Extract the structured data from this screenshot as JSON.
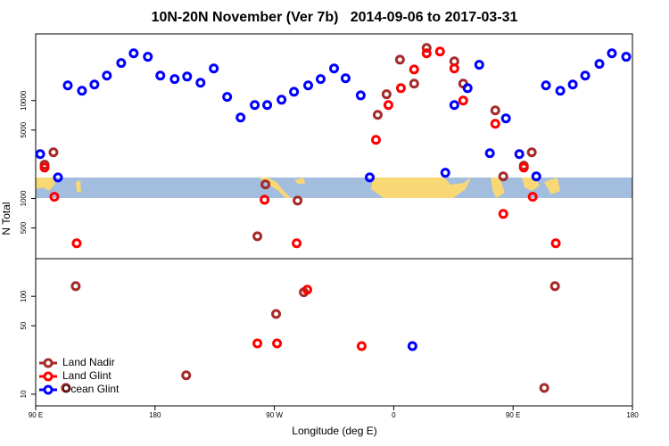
{
  "chart_data": {
    "type": "scatter",
    "title": "10N-20N November (Ver 7b)   2014-09-06 to 2017-03-31",
    "xlabel": "Longitude (deg E)",
    "ylabel": "N Total",
    "xlim": [
      90,
      540
    ],
    "xticks": [
      {
        "value": 90,
        "label": "90 E"
      },
      180,
      {
        "value": 270,
        "label": "90 W"
      },
      {
        "value": 360,
        "label": "0"
      },
      {
        "value": 450,
        "label": "90 E"
      },
      {
        "value": 540,
        "label": "180"
      }
    ],
    "ylim": [
      7.6,
      48000
    ],
    "ylog": true,
    "yticks": [
      10,
      50,
      100,
      500,
      1000,
      5000,
      10000
    ],
    "legend": "bottom-left",
    "series": [
      {
        "name": "Land Nadir",
        "color": "#a52a2a",
        "x": [
          96.7,
          103.4,
          112.8,
          120.2,
          203.5,
          257.2,
          263.3,
          271.3,
          287.5,
          292.2,
          347.9,
          354.6,
          364.7,
          375.4,
          384.8,
          405.7,
          412.4,
          436.6,
          442.6,
          458.1,
          464.1,
          473.5,
          481.6
        ],
        "values": [
          2210,
          2960,
          11.6,
          127,
          15.6,
          411,
          1390,
          66,
          950,
          110,
          7150,
          11600,
          26200,
          14900,
          34500,
          25200,
          14900,
          7940,
          1680,
          2160,
          2960,
          11.6,
          127
        ]
      },
      {
        "name": "Land Glint",
        "color": "#ff0000",
        "x": [
          96.7,
          104.1,
          120.9,
          257.2,
          262.6,
          272.0,
          286.8,
          294.8,
          335.8,
          346.6,
          356.0,
          365.4,
          375.4,
          384.8,
          394.9,
          405.7,
          412.4,
          436.6,
          442.6,
          458.1,
          464.8,
          482.2
        ],
        "values": [
          2070,
          1040,
          348,
          33,
          970,
          33,
          348,
          117,
          31,
          3970,
          9000,
          13400,
          20800,
          30400,
          31700,
          21300,
          10000,
          5800,
          695,
          2070,
          1040,
          348
        ]
      },
      {
        "name": "Ocean Glint",
        "color": "#0000ff",
        "x": [
          93.4,
          106.8,
          114.2,
          124.9,
          134.3,
          143.7,
          154.5,
          163.9,
          174.6,
          184.0,
          194.8,
          204.2,
          214.3,
          224.3,
          234.4,
          244.5,
          255.2,
          264.6,
          275.4,
          284.8,
          295.5,
          304.9,
          315.0,
          323.7,
          335.1,
          341.9,
          374.1,
          398.9,
          405.7,
          415.7,
          424.5,
          432.5,
          444.6,
          454.7,
          467.5,
          474.8,
          485.6,
          495.0,
          504.4,
          515.1,
          524.5,
          535.3
        ],
        "values": [
          2840,
          1640,
          14300,
          12600,
          14600,
          18000,
          24200,
          30400,
          28000,
          18000,
          16600,
          17600,
          15200,
          21300,
          10900,
          6710,
          9000,
          9000,
          10200,
          12300,
          14300,
          16600,
          21300,
          16900,
          11300,
          1640,
          31,
          1830,
          9000,
          13400,
          23200,
          2900,
          6580,
          2840,
          1680,
          14300,
          12600,
          14600,
          18000,
          23700,
          30400,
          28000
        ]
      }
    ]
  }
}
